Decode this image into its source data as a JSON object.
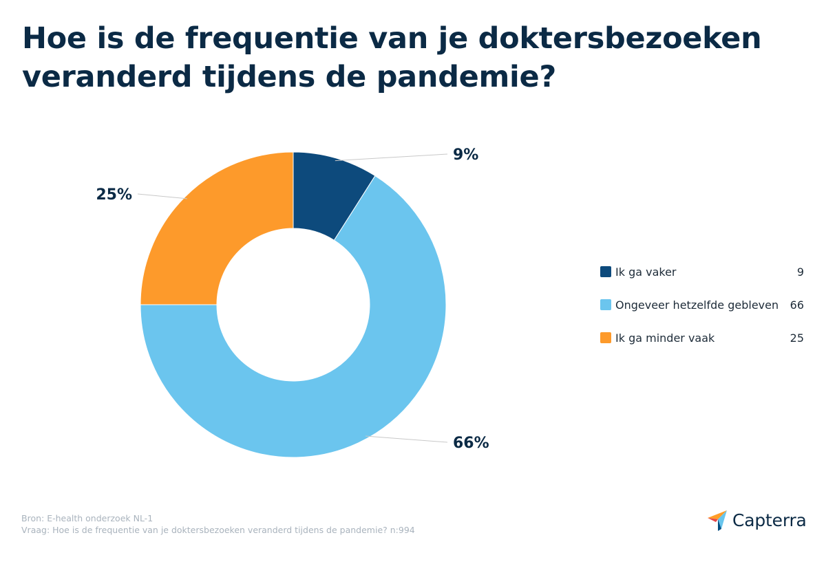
{
  "title": "Hoe is de frequentie van je doktersbezoeken veranderd tijdens de pandemie?",
  "chart_data": {
    "type": "pie",
    "style": "donut",
    "categories": [
      "Ik ga vaker",
      "Ongeveer hetzelfde gebleven",
      "Ik ga minder vaak"
    ],
    "values": [
      9,
      66,
      25
    ],
    "data_labels": [
      "9%",
      "66%",
      "25%"
    ],
    "colors": [
      "#0d4a7c",
      "#6bc5ee",
      "#fd9a2b"
    ],
    "legend_position": "right"
  },
  "legend": [
    {
      "label": "Ik ga vaker",
      "value": "9",
      "color": "#0d4a7c"
    },
    {
      "label": "Ongeveer hetzelfde gebleven",
      "value": "66",
      "color": "#6bc5ee"
    },
    {
      "label": "Ik ga minder vaak",
      "value": "25",
      "color": "#fd9a2b"
    }
  ],
  "footer": {
    "source": "Bron: E-health onderzoek NL-1",
    "question": "Vraag: Hoe is de frequentie van je doktersbezoeken veranderd tijdens de pandemie? n:994"
  },
  "logo": {
    "text": "Capterra",
    "icon": "capterra-logo-icon"
  }
}
